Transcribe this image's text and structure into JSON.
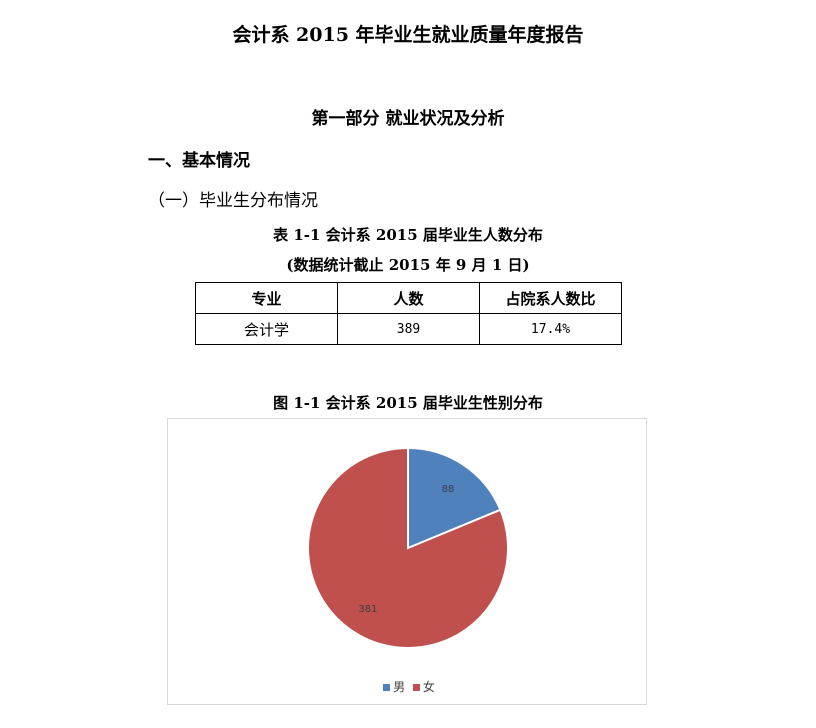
{
  "document": {
    "title": "会计系 2015 年毕业生就业质量年度报告",
    "part_title": "第一部分  就业状况及分析",
    "section1": "一、基本情况",
    "subsection1": "（一）毕业生分布情况",
    "table_caption": "表 1-1  会计系 2015 届毕业生人数分布",
    "table_note": "(数据统计截止 2015 年 9 月 1 日)",
    "table": {
      "headers": [
        "专业",
        "人数",
        "占院系人数比"
      ],
      "rows": [
        [
          "会计学",
          "389",
          "17.4%"
        ]
      ]
    },
    "figure_caption": "图 1-1  会计系 2015 届毕业生性别分布"
  },
  "chart_data": {
    "type": "pie",
    "title": "图 1-1  会计系 2015 届毕业生性别分布",
    "categories": [
      "男",
      "女"
    ],
    "values": [
      88,
      381
    ],
    "colors": [
      "#4f81bd",
      "#c0504d"
    ],
    "start": "12 o'clock, clockwise",
    "legend": "bottom"
  }
}
